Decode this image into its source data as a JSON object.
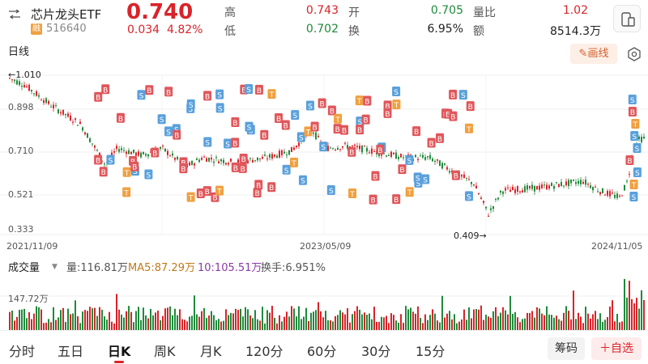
{
  "header": {
    "name": "芯片龙头ETF",
    "badge": "融",
    "code": "516640",
    "price": "0.740",
    "change": "0.034",
    "change_pct": "4.82%",
    "stats": {
      "high_label": "高",
      "high": "0.743",
      "low_label": "低",
      "low": "0.702",
      "open_label": "开",
      "open": "0.705",
      "turnover_label": "换",
      "turnover": "6.95%",
      "volratio_label": "量比",
      "volratio": "1.02",
      "amount_label": "额",
      "amount": "8514.3万"
    }
  },
  "toolbar": {
    "period": "日线",
    "draw": "画线"
  },
  "chart": {
    "price_axis": [
      "1.010",
      "0.898",
      "0.710",
      "0.521",
      "0.333"
    ],
    "date_axis": [
      "2021/11/09",
      "2023/05/09",
      "2024/11/05"
    ],
    "low_marker": "0.409→",
    "high_marker": "←1.010",
    "volume_axis": "147.72万",
    "colors": {
      "up": "#d9232a",
      "down": "#1e8a3a",
      "buy": "#e0575b",
      "sell": "#5aa0dc",
      "t": "#f0a040"
    }
  },
  "volume": {
    "select": "成交量",
    "vol": "量:116.81万",
    "ma5": "MA5:87.29万",
    "ma10": "10:105.51万",
    "turnover": "换手:6.951%"
  },
  "tabs": [
    "分时",
    "五日",
    "日K",
    "周K",
    "月K",
    "120分",
    "60分",
    "30分",
    "15分"
  ],
  "actions": {
    "chips": "筹码",
    "watch": "＋自选"
  }
}
